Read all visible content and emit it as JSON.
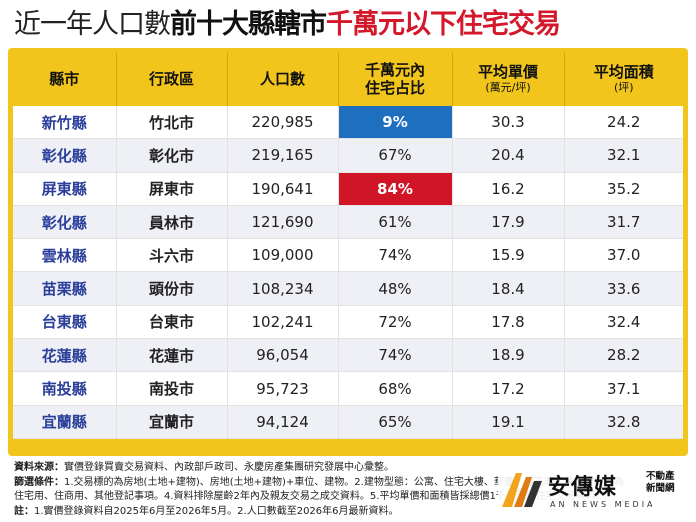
{
  "title": {
    "part1": "近一年人口數",
    "part2": "前十大縣轄市",
    "part3": "千萬元以下住宅交易"
  },
  "colors": {
    "panel": "#f2c51c",
    "county_text": "#2b3f9a",
    "highlight_low": "#1f6fc1",
    "highlight_high": "#cf1526",
    "title_accent": "#d4172a"
  },
  "table": {
    "headers": [
      {
        "label": "縣市",
        "sub": ""
      },
      {
        "label": "行政區",
        "sub": ""
      },
      {
        "label": "人口數",
        "sub": ""
      },
      {
        "label": "千萬元內\n住宅占比",
        "sub": ""
      },
      {
        "label": "平均單價",
        "sub": "(萬元/坪)"
      },
      {
        "label": "平均面積",
        "sub": "(坪)"
      }
    ],
    "rows": [
      {
        "county": "新竹縣",
        "city": "竹北市",
        "population": "220,985",
        "share": "9%",
        "price": "30.3",
        "area": "24.2"
      },
      {
        "county": "彰化縣",
        "city": "彰化市",
        "population": "219,165",
        "share": "67%",
        "price": "20.4",
        "area": "32.1"
      },
      {
        "county": "屏東縣",
        "city": "屏東市",
        "population": "190,641",
        "share": "84%",
        "price": "16.2",
        "area": "35.2"
      },
      {
        "county": "彰化縣",
        "city": "員林市",
        "population": "121,690",
        "share": "61%",
        "price": "17.9",
        "area": "31.7"
      },
      {
        "county": "雲林縣",
        "city": "斗六市",
        "population": "109,000",
        "share": "74%",
        "price": "15.9",
        "area": "37.0"
      },
      {
        "county": "苗栗縣",
        "city": "頭份市",
        "population": "108,234",
        "share": "48%",
        "price": "18.4",
        "area": "33.6"
      },
      {
        "county": "台東縣",
        "city": "台東市",
        "population": "102,241",
        "share": "72%",
        "price": "17.8",
        "area": "32.4"
      },
      {
        "county": "花蓮縣",
        "city": "花蓮市",
        "population": "96,054",
        "share": "74%",
        "price": "18.9",
        "area": "28.2"
      },
      {
        "county": "南投縣",
        "city": "南投市",
        "population": "95,723",
        "share": "68%",
        "price": "17.2",
        "area": "37.1"
      },
      {
        "county": "宜蘭縣",
        "city": "宜蘭市",
        "population": "94,124",
        "share": "65%",
        "price": "19.1",
        "area": "32.8"
      }
    ]
  },
  "notes": {
    "source_label": "資料來源：",
    "source_text": "實價登錄買賣交易資料、內政部戶政司、永慶房產集團研究發展中心彙整。",
    "filter_label": "篩選條件：",
    "filter_text_1": "1.交易標的為房地(土地+建物)、房地(土地+建物)+車位、建物。2.建物型態：公寓、住宅大樓、華廈、透天厝，且主要用途為",
    "filter_text_2": "住宅用、住商用、其他登記事項。4.資料排除屋齡2年內及親友交易之成交資料。5.平均單價和面積皆採總價1千萬元內住宅交易資料。",
    "note_label": "註：",
    "note_text": "1.實價登錄資料自2025年6月至2026年5月。2.人口數截至2026年6月最新資料。"
  },
  "logo": {
    "name": "安傳媒",
    "tag": "不動產\n新聞網",
    "english": "AN NEWS MEDIA"
  }
}
